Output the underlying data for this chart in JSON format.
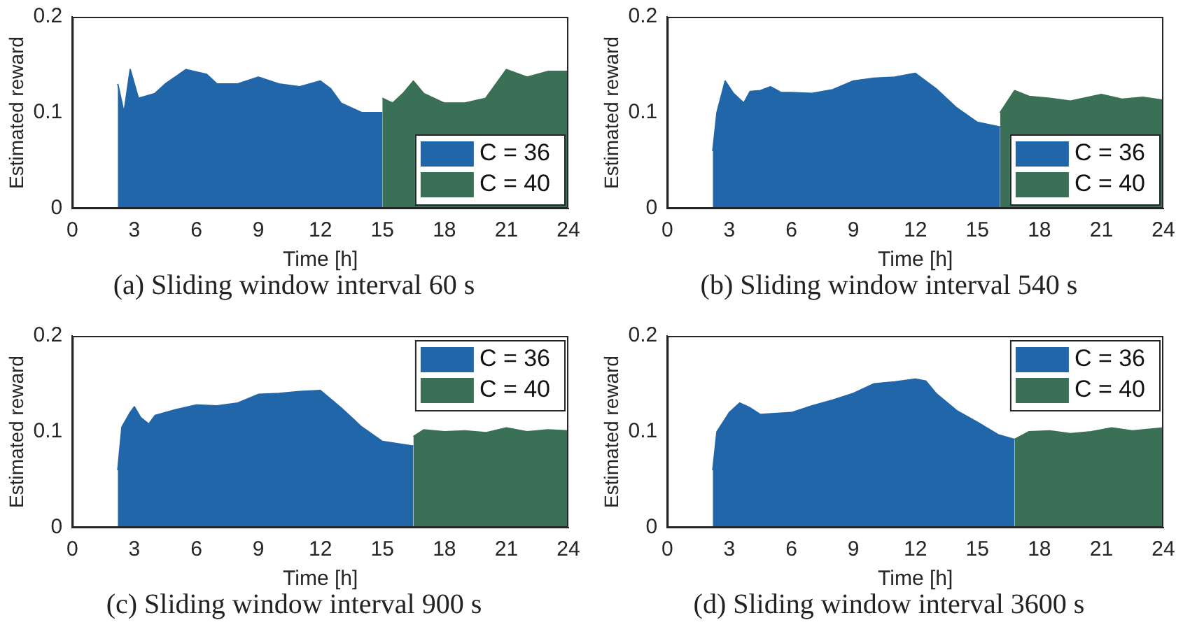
{
  "chart_data": [
    {
      "type": "area",
      "title": "(a) Sliding window interval 60 s",
      "xlabel": "Time [h]",
      "ylabel": "Estimated reward",
      "xlim": [
        0,
        24
      ],
      "xticks": [
        0,
        3,
        6,
        9,
        12,
        15,
        18,
        21,
        24
      ],
      "ylim": [
        0,
        0.2
      ],
      "yticks": [
        0,
        0.1,
        0.2
      ],
      "legend": "bottom right",
      "series": [
        {
          "name": "C = 36",
          "color": "#2166a9",
          "x": [
            2.2,
            2.5,
            2.8,
            3.2,
            4,
            4.5,
            5.5,
            6.5,
            7,
            8,
            9,
            10,
            11,
            12,
            12.5,
            13,
            14,
            15
          ],
          "values": [
            0.13,
            0.1,
            0.145,
            0.115,
            0.12,
            0.13,
            0.145,
            0.14,
            0.13,
            0.13,
            0.137,
            0.13,
            0.127,
            0.133,
            0.125,
            0.11,
            0.1,
            0.1
          ]
        },
        {
          "name": "C = 40",
          "color": "#3a7055",
          "x": [
            15,
            15.5,
            16,
            16.5,
            17,
            18,
            19,
            20,
            21,
            22,
            23,
            24
          ],
          "values": [
            0.115,
            0.11,
            0.12,
            0.133,
            0.12,
            0.11,
            0.11,
            0.115,
            0.145,
            0.137,
            0.143,
            0.143
          ]
        }
      ]
    },
    {
      "type": "area",
      "title": "(b) Sliding window interval 540 s",
      "xlabel": "Time [h]",
      "ylabel": "Estimated reward",
      "xlim": [
        0,
        24
      ],
      "xticks": [
        0,
        3,
        6,
        9,
        12,
        15,
        18,
        21,
        24
      ],
      "ylim": [
        0,
        0.2
      ],
      "yticks": [
        0,
        0.1,
        0.2
      ],
      "legend": "bottom right",
      "series": [
        {
          "name": "C = 36",
          "color": "#2166a9",
          "x": [
            2.2,
            2.4,
            2.8,
            3.2,
            3.7,
            4,
            4.5,
            5,
            5.5,
            6,
            7,
            8,
            9,
            10,
            11,
            12,
            13,
            14,
            15,
            16.1
          ],
          "values": [
            0.06,
            0.1,
            0.133,
            0.12,
            0.11,
            0.122,
            0.123,
            0.127,
            0.121,
            0.121,
            0.12,
            0.124,
            0.133,
            0.136,
            0.137,
            0.141,
            0.125,
            0.105,
            0.09,
            0.085
          ]
        },
        {
          "name": "C = 40",
          "color": "#3a7055",
          "x": [
            16.1,
            16.8,
            17.5,
            18.5,
            19.5,
            21,
            22,
            23,
            24
          ],
          "values": [
            0.1,
            0.123,
            0.117,
            0.115,
            0.112,
            0.119,
            0.114,
            0.116,
            0.113
          ]
        }
      ]
    },
    {
      "type": "area",
      "title": "(c) Sliding window interval 900 s",
      "xlabel": "Time [h]",
      "ylabel": "Estimated reward",
      "xlim": [
        0,
        24
      ],
      "xticks": [
        0,
        3,
        6,
        9,
        12,
        15,
        18,
        21,
        24
      ],
      "ylim": [
        0,
        0.2
      ],
      "yticks": [
        0,
        0.1,
        0.2
      ],
      "legend": "top right",
      "series": [
        {
          "name": "C = 36",
          "color": "#2166a9",
          "x": [
            2.2,
            2.4,
            2.8,
            3,
            3.3,
            3.7,
            4,
            5,
            6,
            7,
            8,
            9,
            10,
            11,
            12,
            13,
            14,
            15,
            16.5
          ],
          "values": [
            0.06,
            0.105,
            0.12,
            0.126,
            0.115,
            0.108,
            0.117,
            0.123,
            0.128,
            0.127,
            0.13,
            0.139,
            0.14,
            0.142,
            0.143,
            0.125,
            0.105,
            0.09,
            0.085
          ]
        },
        {
          "name": "C = 40",
          "color": "#3a7055",
          "x": [
            16.5,
            17,
            18,
            19,
            20,
            21,
            22,
            23,
            24
          ],
          "values": [
            0.095,
            0.102,
            0.1,
            0.101,
            0.099,
            0.104,
            0.1,
            0.102,
            0.101
          ]
        }
      ]
    },
    {
      "type": "area",
      "title": "(d) Sliding window interval 3600 s",
      "xlabel": "Time [h]",
      "ylabel": "Estimated reward",
      "xlim": [
        0,
        24
      ],
      "xticks": [
        0,
        3,
        6,
        9,
        12,
        15,
        18,
        21,
        24
      ],
      "ylim": [
        0,
        0.2
      ],
      "yticks": [
        0,
        0.1,
        0.2
      ],
      "legend": "top right",
      "series": [
        {
          "name": "C = 36",
          "color": "#2166a9",
          "x": [
            2.2,
            2.4,
            3,
            3.5,
            4,
            4.5,
            6,
            7,
            8,
            9,
            10,
            11,
            12,
            12.5,
            13,
            14,
            15,
            16,
            16.8
          ],
          "values": [
            0.06,
            0.1,
            0.12,
            0.13,
            0.125,
            0.118,
            0.12,
            0.127,
            0.133,
            0.14,
            0.15,
            0.152,
            0.155,
            0.153,
            0.14,
            0.122,
            0.11,
            0.097,
            0.092
          ]
        },
        {
          "name": "C = 40",
          "color": "#3a7055",
          "x": [
            16.8,
            17.5,
            18.5,
            19.5,
            20.5,
            21.5,
            22.5,
            24
          ],
          "values": [
            0.092,
            0.1,
            0.101,
            0.098,
            0.1,
            0.104,
            0.101,
            0.104
          ]
        }
      ]
    }
  ]
}
